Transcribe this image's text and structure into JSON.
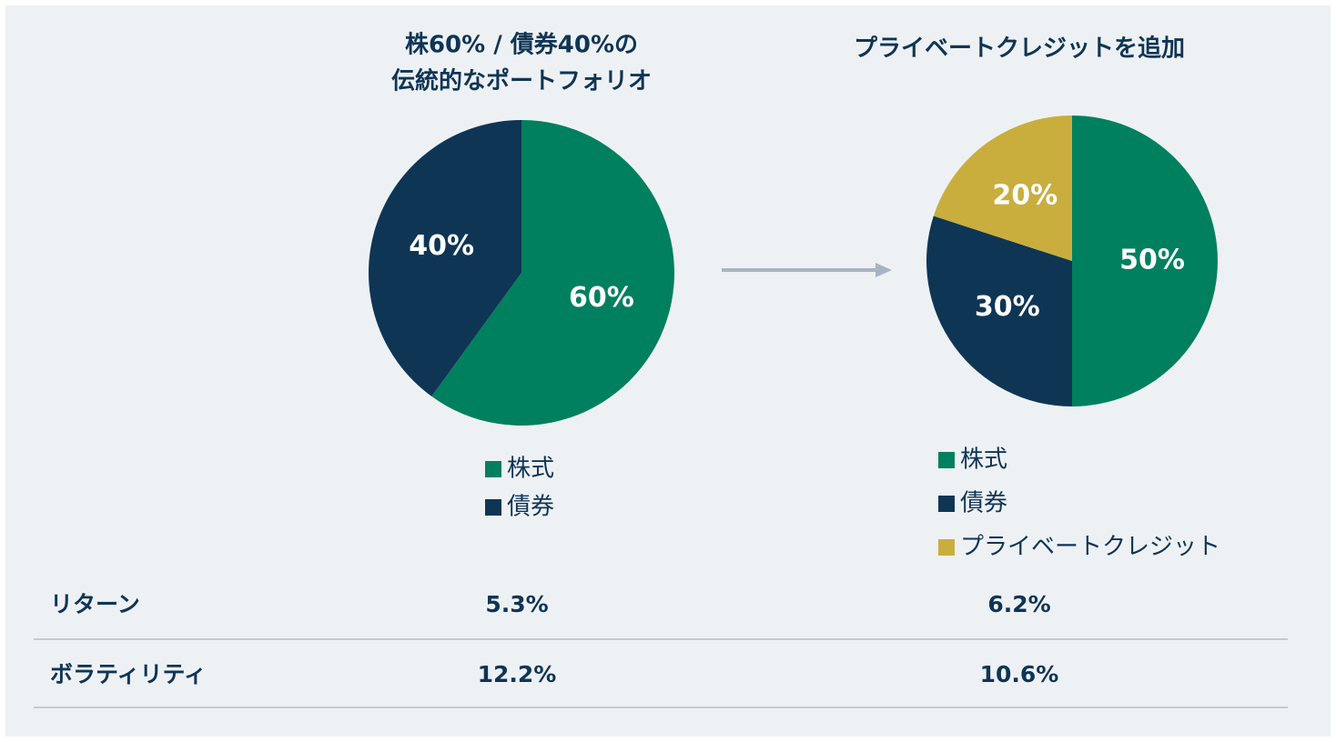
{
  "chart_data": [
    {
      "type": "pie",
      "title": [
        "株60% / 債券40%の",
        "伝統的なポートフォリオ"
      ],
      "categories": [
        "株式",
        "債券"
      ],
      "values": [
        60,
        40
      ],
      "value_labels": [
        "60%",
        "40%"
      ],
      "colors": [
        "#00805f",
        "#0f3555"
      ]
    },
    {
      "type": "pie",
      "title": [
        "プライベートクレジットを追加"
      ],
      "categories": [
        "株式",
        "債券",
        "プライベートクレジット"
      ],
      "values": [
        50,
        30,
        20
      ],
      "value_labels": [
        "50%",
        "30%",
        "20%"
      ],
      "colors": [
        "#00805f",
        "#0f3555",
        "#c9ae3e"
      ]
    }
  ],
  "table": {
    "rows": [
      [
        "リターン",
        "5.3%",
        "6.2%"
      ],
      [
        "ボラティリティ",
        "12.2%",
        "10.6%"
      ]
    ]
  }
}
